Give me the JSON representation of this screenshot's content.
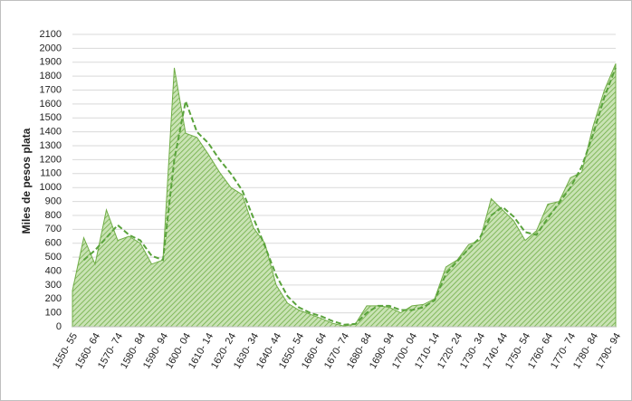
{
  "chart_data": {
    "type": "area",
    "y_label": "Miles de pesos plata",
    "categories": [
      "1550- 55",
      null,
      "1560- 64",
      null,
      "1570- 74",
      null,
      "1580- 84",
      null,
      "1590- 94",
      null,
      "1600- 04",
      null,
      "1610- 14",
      null,
      "1620- 24",
      null,
      "1630- 34",
      null,
      "1640- 44",
      null,
      "1650- 54",
      null,
      "1660- 64",
      null,
      "1670- 74",
      null,
      "1680- 84",
      null,
      "1690- 94",
      null,
      "1700- 04",
      null,
      "1710- 14",
      null,
      "1720- 24",
      null,
      "1730- 34",
      null,
      "1740- 44",
      null,
      "1750- 54",
      null,
      "1760- 64",
      null,
      "1770- 74",
      null,
      "1780- 84",
      null,
      "1790- 94"
    ],
    "series": [
      {
        "color": "#70ad47",
        "style": "hatched-area",
        "values": [
          260,
          640,
          450,
          840,
          620,
          650,
          600,
          450,
          480,
          1860,
          1390,
          1360,
          1240,
          1110,
          1000,
          950,
          710,
          600,
          300,
          170,
          120,
          90,
          60,
          25,
          5,
          20,
          150,
          150,
          140,
          100,
          150,
          160,
          200,
          430,
          480,
          590,
          620,
          920,
          840,
          760,
          620,
          690,
          880,
          900,
          1070,
          1110,
          1440,
          1700,
          1890
        ]
      },
      {
        "color": "#5aa33c",
        "style": "dashed-line",
        "values": [
          null,
          480,
          550,
          640,
          730,
          660,
          620,
          510,
          480,
          1200,
          1620,
          1400,
          1320,
          1200,
          1100,
          980,
          780,
          580,
          370,
          220,
          140,
          100,
          75,
          40,
          15,
          20,
          100,
          150,
          150,
          120,
          120,
          140,
          190,
          380,
          470,
          560,
          640,
          800,
          860,
          790,
          680,
          660,
          780,
          890,
          1000,
          1150,
          1380,
          1650,
          1860
        ]
      }
    ],
    "ylim": [
      0,
      2100
    ],
    "yticks": [
      0,
      100,
      200,
      300,
      400,
      500,
      600,
      700,
      800,
      900,
      1000,
      1100,
      1200,
      1300,
      1400,
      1500,
      1600,
      1700,
      1800,
      1900,
      2000,
      2100
    ],
    "grid": true
  }
}
